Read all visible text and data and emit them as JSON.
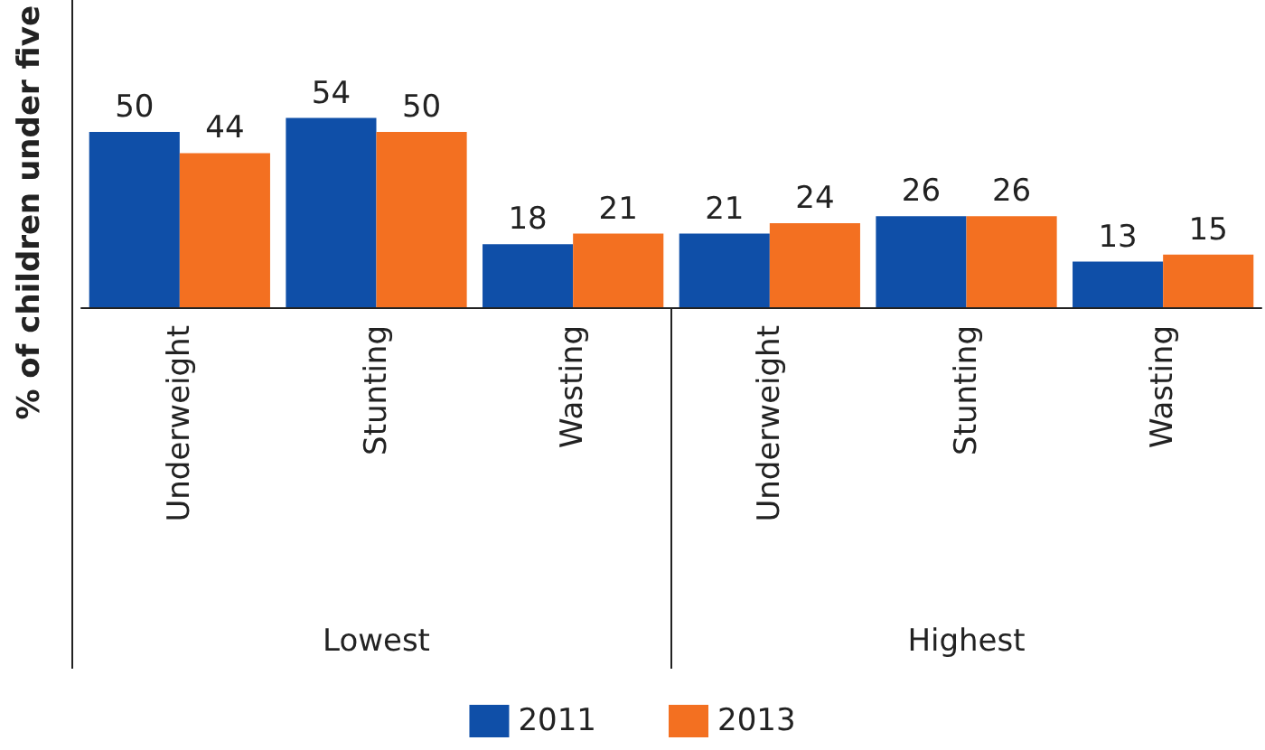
{
  "chart_data": {
    "type": "bar",
    "ylabel": "% of children under five",
    "categories": [
      "Underweight",
      "Stunting",
      "Wasting",
      "Underweight",
      "Stunting",
      "Wasting"
    ],
    "annotations": [
      "Lowest",
      "Highest"
    ],
    "series": [
      {
        "name": "2011",
        "color": "#0f4fa8",
        "values": [
          50,
          54,
          18,
          21,
          26,
          13
        ]
      },
      {
        "name": "2013",
        "color": "#f37021",
        "values": [
          44,
          50,
          21,
          24,
          26,
          15
        ]
      }
    ],
    "data_labels": true,
    "grid": false,
    "legend": "bottom"
  }
}
